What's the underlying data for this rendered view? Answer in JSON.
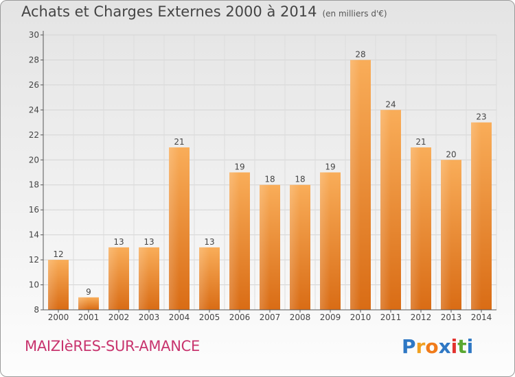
{
  "chart_data": {
    "type": "bar",
    "title": "Achats et Charges Externes 2000 à 2014",
    "subtitle": "(en milliers d'€)",
    "categories": [
      "2000",
      "2001",
      "2002",
      "2003",
      "2004",
      "2005",
      "2006",
      "2007",
      "2008",
      "2009",
      "2010",
      "2011",
      "2012",
      "2013",
      "2014"
    ],
    "values": [
      12,
      9,
      13,
      13,
      21,
      13,
      19,
      18,
      18,
      19,
      28,
      24,
      21,
      20,
      23
    ],
    "ylim": [
      8,
      30
    ],
    "yticks": [
      8,
      10,
      12,
      14,
      16,
      18,
      20,
      22,
      24,
      26,
      28,
      30
    ],
    "grid": true,
    "bar_color": "#f39a3a"
  },
  "footer": {
    "place": "MAIZIèRES-SUR-AMANCE",
    "logo_letters": [
      "P",
      "r",
      "o",
      "x",
      "i",
      "t",
      "i"
    ],
    "logo_colors": [
      "#2f78c4",
      "#f0a020",
      "#f07b1a",
      "#2f78c4",
      "#e2322e",
      "#5aa832",
      "#2f78c4"
    ]
  }
}
